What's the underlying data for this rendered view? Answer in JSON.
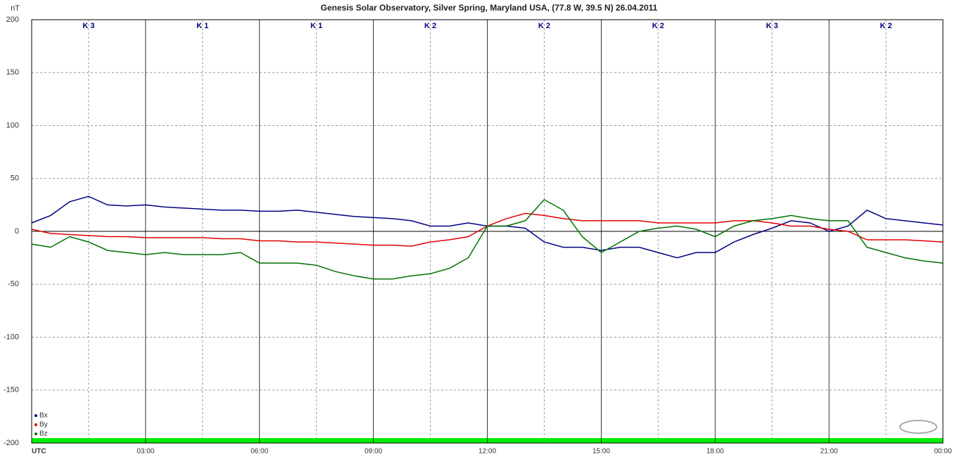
{
  "chart_data": {
    "type": "line",
    "title": "Genesis Solar Observatory, Silver Spring, Maryland USA, (77.8 W, 39.5 N)  26.04.2011",
    "y_label": "nT",
    "k_index": [
      "K 3",
      "K 1",
      "K 1",
      "K 2",
      "K 2",
      "K 2",
      "K 3",
      "K 2"
    ],
    "x": [
      0,
      0.5,
      1,
      1.5,
      2,
      2.5,
      3,
      3.5,
      4,
      4.5,
      5,
      5.5,
      6,
      6.5,
      7,
      7.5,
      8,
      8.5,
      9,
      9.5,
      10,
      10.5,
      11,
      11.5,
      12,
      12.5,
      13,
      13.5,
      14,
      14.5,
      15,
      15.5,
      16,
      16.5,
      17,
      17.5,
      18,
      18.5,
      19,
      19.5,
      20,
      20.5,
      21,
      21.5,
      22,
      22.5,
      23,
      23.5,
      24
    ],
    "series": [
      {
        "name": "Bx",
        "color": "#000080",
        "values": [
          8,
          15,
          28,
          33,
          25,
          24,
          25,
          23,
          22,
          21,
          20,
          20,
          19,
          19,
          20,
          18,
          16,
          14,
          13,
          12,
          10,
          5,
          5,
          8,
          5,
          5,
          3,
          -10,
          -15,
          -15,
          -18,
          -15,
          -15,
          -20,
          -25,
          -20,
          -20,
          -10,
          -3,
          3,
          10,
          8,
          0,
          5,
          20,
          12,
          10,
          8,
          6
        ]
      },
      {
        "name": "By",
        "color": "#e00000",
        "values": [
          2,
          -2,
          -3,
          -4,
          -5,
          -5,
          -6,
          -6,
          -6,
          -6,
          -7,
          -7,
          -9,
          -9,
          -10,
          -10,
          -11,
          -12,
          -13,
          -13,
          -14,
          -10,
          -8,
          -5,
          5,
          12,
          17,
          15,
          12,
          10,
          10,
          10,
          10,
          8,
          8,
          8,
          8,
          10,
          10,
          8,
          5,
          5,
          2,
          0,
          -8,
          -8,
          -8,
          -9,
          -10
        ]
      },
      {
        "name": "Bz",
        "color": "#007000",
        "values": [
          -12,
          -15,
          -5,
          -10,
          -18,
          -20,
          -22,
          -20,
          -22,
          -22,
          -22,
          -20,
          -30,
          -30,
          -30,
          -32,
          -38,
          -42,
          -45,
          -45,
          -42,
          -40,
          -35,
          -25,
          5,
          5,
          10,
          30,
          20,
          -5,
          -20,
          -10,
          0,
          3,
          5,
          2,
          -5,
          5,
          10,
          12,
          15,
          12,
          10,
          10,
          -15,
          -20,
          -25,
          -28,
          -30
        ]
      }
    ],
    "xlim": [
      0,
      24
    ],
    "xticks": [
      {
        "value": 0,
        "label": "UTC"
      },
      {
        "value": 3,
        "label": "03:00"
      },
      {
        "value": 6,
        "label": "06:00"
      },
      {
        "value": 9,
        "label": "09:00"
      },
      {
        "value": 12,
        "label": "12:00"
      },
      {
        "value": 15,
        "label": "15:00"
      },
      {
        "value": 18,
        "label": "18:00"
      },
      {
        "value": 21,
        "label": "21:00"
      },
      {
        "value": 24,
        "label": "00:00"
      }
    ],
    "ylim": [
      -200,
      200
    ],
    "yticks": [
      200,
      150,
      100,
      50,
      0,
      -50,
      -100,
      -150,
      -200
    ],
    "grid": true,
    "legend": "bottom-left"
  }
}
